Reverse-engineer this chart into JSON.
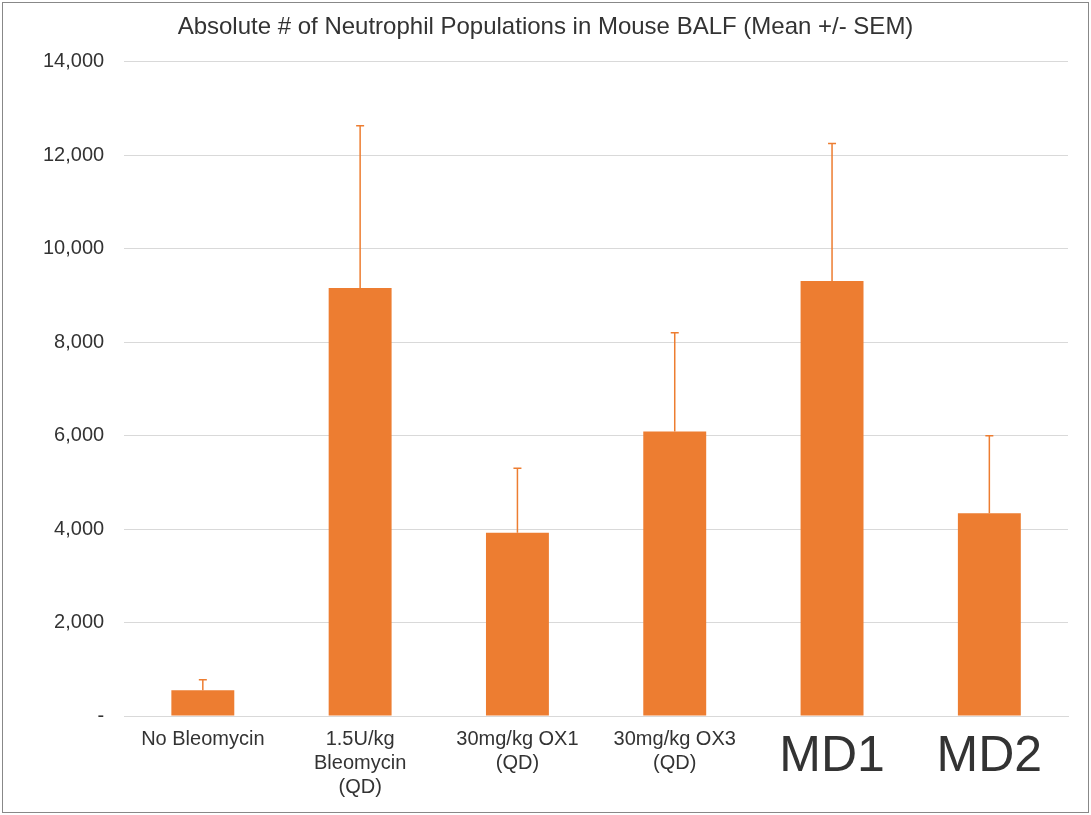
{
  "chart_data": {
    "type": "bar",
    "title": "Absolute # of Neutrophil Populations in Mouse BALF (Mean +/- SEM)",
    "categories": [
      "No Bleomycin",
      "1.5U/kg Bleomycin (QD)",
      "30mg/kg OX1 (QD)",
      "30mg/kg OX3 (QD)",
      "MD1",
      "MD2"
    ],
    "values": [
      550,
      9160,
      3920,
      6090,
      9310,
      4340
    ],
    "errors": [
      [
        550,
        775
      ],
      [
        9160,
        12630
      ],
      [
        3920,
        5300
      ],
      [
        6090,
        8200
      ],
      [
        9310,
        12250
      ],
      [
        4340,
        6000
      ]
    ],
    "color": "#ed7d31",
    "ylim": [
      0,
      14000
    ],
    "yticks": [
      {
        "value": 0,
        "label": "-"
      },
      {
        "value": 2000,
        "label": "2,000"
      },
      {
        "value": 4000,
        "label": "4,000"
      },
      {
        "value": 6000,
        "label": "6,000"
      },
      {
        "value": 8000,
        "label": "8,000"
      },
      {
        "value": 10000,
        "label": "10,000"
      },
      {
        "value": 12000,
        "label": "12,000"
      },
      {
        "value": 14000,
        "label": "14,000"
      }
    ],
    "grid": "y",
    "legend": false
  }
}
